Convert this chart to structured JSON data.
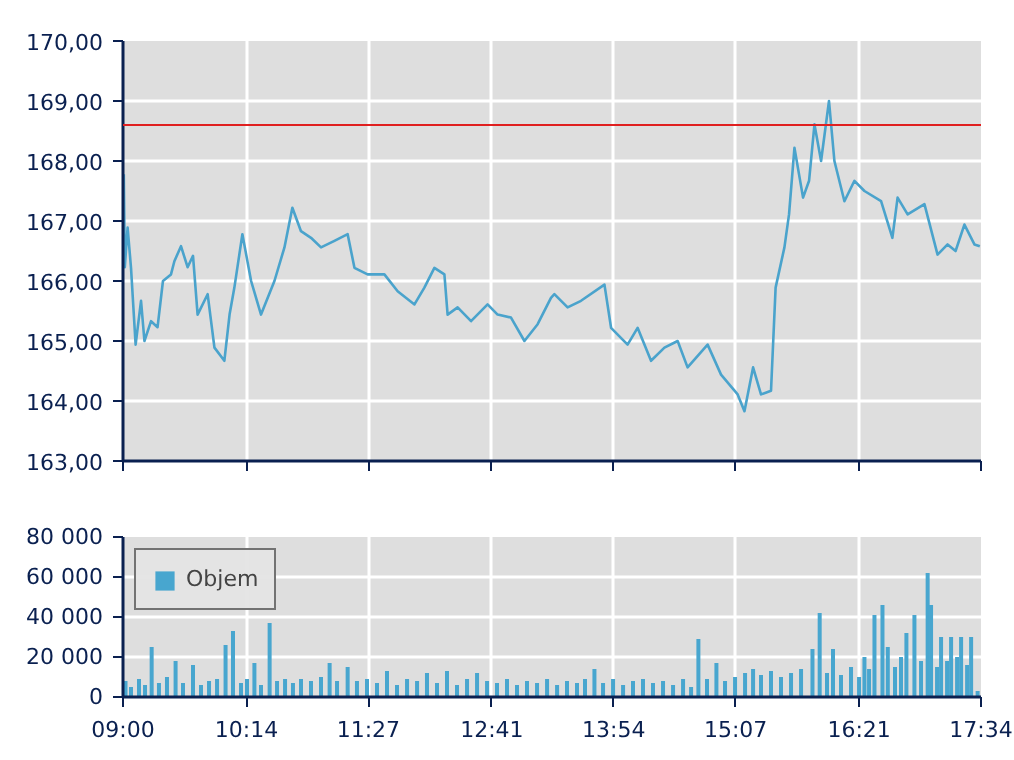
{
  "chart_data": [
    {
      "type": "line",
      "xlim": [
        9.0,
        17.5667
      ],
      "xticks": [
        {
          "value": 9.0,
          "label": null
        },
        {
          "value": 10.2333,
          "label": null
        },
        {
          "value": 11.45,
          "label": null
        },
        {
          "value": 12.6833,
          "label": null
        },
        {
          "value": 13.9,
          "label": null
        },
        {
          "value": 15.1167,
          "label": null
        },
        {
          "value": 16.35,
          "label": null
        },
        {
          "value": 17.5667,
          "label": null
        }
      ],
      "ylim": [
        163,
        170
      ],
      "yticks": [
        {
          "value": 163,
          "label": "163,00"
        },
        {
          "value": 164,
          "label": "164,00"
        },
        {
          "value": 165,
          "label": "165,00"
        },
        {
          "value": 166,
          "label": "166,00"
        },
        {
          "value": 167,
          "label": "167,00"
        },
        {
          "value": 168,
          "label": "168,00"
        },
        {
          "value": 169,
          "label": "169,00"
        },
        {
          "value": 170,
          "label": "170,00"
        }
      ],
      "grid": true,
      "legend": false,
      "tick_labels": "y",
      "line_style": "solid",
      "marker": "none",
      "ref_lines": [
        {
          "axis": "y",
          "value": 168.6,
          "color": "#e02020"
        }
      ],
      "series": [
        {
          "color": "#4aa3cc",
          "x": [
            9.008,
            9.018,
            9.046,
            9.08,
            9.126,
            9.18,
            9.214,
            9.28,
            9.345,
            9.399,
            9.479,
            9.513,
            9.579,
            9.645,
            9.699,
            9.745,
            9.845,
            9.913,
            10.012,
            10.064,
            10.112,
            10.192,
            10.279,
            10.378,
            10.512,
            10.612,
            10.691,
            10.777,
            10.877,
            10.977,
            11.111,
            11.243,
            11.311,
            11.442,
            11.61,
            11.742,
            11.91,
            12.009,
            12.109,
            12.209,
            12.241,
            12.341,
            12.475,
            12.64,
            12.74,
            12.874,
            13.008,
            13.14,
            13.273,
            13.307,
            13.439,
            13.573,
            13.807,
            13.873,
            14.038,
            14.138,
            14.272,
            14.406,
            14.538,
            14.637,
            14.837,
            14.971,
            15.137,
            15.205,
            15.291,
            15.37,
            15.47,
            15.516,
            15.604,
            15.65,
            15.704,
            15.79,
            15.85,
            15.904,
            15.97,
            16.049,
            16.103,
            16.203,
            16.303,
            16.403,
            16.569,
            16.682,
            16.734,
            16.834,
            17.002,
            17.133,
            17.233,
            17.313,
            17.401,
            17.501,
            17.555
          ],
          "values": [
            167.78,
            166.23,
            166.89,
            166.22,
            164.94,
            165.67,
            165.0,
            165.33,
            165.23,
            166.0,
            166.11,
            166.33,
            166.58,
            166.23,
            166.42,
            165.44,
            165.78,
            164.89,
            164.67,
            165.44,
            165.89,
            166.78,
            166.0,
            165.44,
            166.0,
            166.56,
            167.22,
            166.83,
            166.72,
            166.56,
            166.67,
            166.78,
            166.22,
            166.11,
            166.11,
            165.83,
            165.61,
            165.89,
            166.22,
            166.11,
            165.44,
            165.56,
            165.33,
            165.61,
            165.44,
            165.39,
            165.0,
            165.28,
            165.72,
            165.78,
            165.56,
            165.67,
            165.94,
            165.22,
            164.94,
            165.22,
            164.67,
            164.89,
            165.0,
            164.56,
            164.94,
            164.44,
            164.11,
            163.83,
            164.56,
            164.11,
            164.17,
            165.89,
            166.56,
            167.11,
            168.22,
            167.39,
            167.67,
            168.61,
            168.0,
            169.0,
            168.0,
            167.33,
            167.67,
            167.5,
            167.33,
            166.72,
            167.39,
            167.11,
            167.28,
            166.44,
            166.61,
            166.5,
            166.94,
            166.61,
            166.58
          ]
        }
      ]
    },
    {
      "type": "bar",
      "xlim": [
        9.0,
        17.5667
      ],
      "xticks": [
        {
          "value": 9.0,
          "label": "09:00"
        },
        {
          "value": 10.2333,
          "label": "10:14"
        },
        {
          "value": 11.45,
          "label": "11:27"
        },
        {
          "value": 12.6833,
          "label": "12:41"
        },
        {
          "value": 13.9,
          "label": "13:54"
        },
        {
          "value": 15.1167,
          "label": "15:07"
        },
        {
          "value": 16.35,
          "label": "16:21"
        },
        {
          "value": 17.5667,
          "label": "17:34"
        }
      ],
      "ylim": [
        0,
        80000
      ],
      "yticks": [
        {
          "value": 0,
          "label": "0"
        },
        {
          "value": 20000,
          "label": "20 000"
        },
        {
          "value": 40000,
          "label": "40 000"
        },
        {
          "value": 60000,
          "label": "60 000"
        },
        {
          "value": 80000,
          "label": "80 000"
        }
      ],
      "grid": true,
      "legend": "top left",
      "series": [
        {
          "name": "Objem",
          "color": "#48a6cf",
          "x": [
            9.025,
            9.08,
            9.16,
            9.22,
            9.286,
            9.359,
            9.439,
            9.525,
            9.599,
            9.699,
            9.779,
            9.859,
            9.939,
            10.024,
            10.098,
            10.178,
            10.238,
            10.312,
            10.378,
            10.464,
            10.538,
            10.618,
            10.697,
            10.777,
            10.877,
            10.977,
            11.063,
            11.137,
            11.243,
            11.336,
            11.436,
            11.536,
            11.636,
            11.736,
            11.836,
            11.936,
            12.035,
            12.135,
            12.235,
            12.335,
            12.435,
            12.535,
            12.635,
            12.734,
            12.834,
            12.934,
            13.034,
            13.134,
            13.234,
            13.334,
            13.433,
            13.533,
            13.613,
            13.707,
            13.793,
            13.893,
            13.993,
            14.092,
            14.192,
            14.292,
            14.392,
            14.492,
            14.592,
            14.672,
            14.745,
            14.831,
            14.925,
            15.011,
            15.111,
            15.211,
            15.291,
            15.37,
            15.47,
            15.57,
            15.67,
            15.77,
            15.884,
            15.956,
            16.029,
            16.089,
            16.169,
            16.269,
            16.349,
            16.403,
            16.449,
            16.503,
            16.583,
            16.636,
            16.708,
            16.768,
            16.822,
            16.902,
            16.968,
            17.034,
            17.068,
            17.128,
            17.168,
            17.228,
            17.268,
            17.328,
            17.368,
            17.428,
            17.468,
            17.533
          ],
          "values": [
            8000,
            5000,
            9000,
            6000,
            25000,
            7000,
            10000,
            18000,
            7000,
            16000,
            6000,
            8000,
            9000,
            26000,
            33000,
            7000,
            9000,
            17000,
            6000,
            37000,
            8000,
            9000,
            7000,
            9000,
            8000,
            10000,
            17000,
            8000,
            15000,
            8000,
            9000,
            7000,
            13000,
            6000,
            9000,
            8000,
            12000,
            7000,
            13000,
            6000,
            9000,
            12000,
            8000,
            7000,
            9000,
            6000,
            8000,
            7000,
            9000,
            6000,
            8000,
            7000,
            9000,
            14000,
            7000,
            9000,
            6000,
            8000,
            9000,
            7000,
            8000,
            6000,
            9000,
            5000,
            29000,
            9000,
            17000,
            8000,
            10000,
            12000,
            14000,
            11000,
            13000,
            10000,
            12000,
            14000,
            24000,
            42000,
            12000,
            24000,
            11000,
            15000,
            10000,
            20000,
            14000,
            41000,
            46000,
            25000,
            15000,
            20000,
            32000,
            41000,
            18000,
            62000,
            46000,
            15000,
            30000,
            18000,
            30000,
            20000,
            30000,
            16000,
            30000,
            3000
          ]
        }
      ]
    }
  ]
}
